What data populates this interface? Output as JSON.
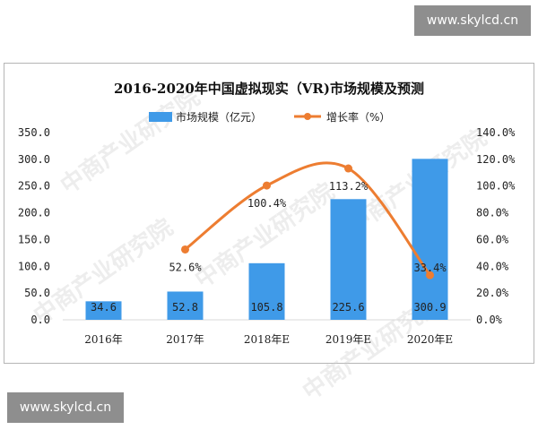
{
  "watermarks": {
    "top": "www.skylcd.cn",
    "bottom": "www.skylcd.cn",
    "background": "中商产业研究院"
  },
  "chart_data": {
    "type": "bar",
    "title": "2016-2020年中国虚拟现实（VR)市场规模及预测",
    "categories": [
      "2016年",
      "2017年",
      "2018年E",
      "2019年E",
      "2020年E"
    ],
    "series": [
      {
        "name": "市场规模（亿元）",
        "type": "bar",
        "axis": "left",
        "color": "#3f9ae8",
        "values": [
          34.6,
          52.8,
          105.8,
          225.6,
          300.9
        ],
        "labels": [
          "34.6",
          "52.8",
          "105.8",
          "225.6",
          "300.9"
        ]
      },
      {
        "name": "增长率（%）",
        "type": "line",
        "axis": "right",
        "color": "#ed7d31",
        "values": [
          null,
          52.6,
          100.4,
          113.2,
          33.4
        ],
        "labels": [
          "",
          "52.6%",
          "100.4%",
          "113.2%",
          "33.4%"
        ]
      }
    ],
    "y_left": {
      "range": [
        0,
        350
      ],
      "ticks": [
        "0.0",
        "50.0",
        "100.0",
        "150.0",
        "200.0",
        "250.0",
        "300.0",
        "350.0"
      ]
    },
    "y_right": {
      "range": [
        0,
        140
      ],
      "ticks": [
        "0.0%",
        "20.0%",
        "40.0%",
        "60.0%",
        "80.0%",
        "100.0%",
        "120.0%",
        "140.0%"
      ]
    },
    "grid": false,
    "legend": "top"
  }
}
